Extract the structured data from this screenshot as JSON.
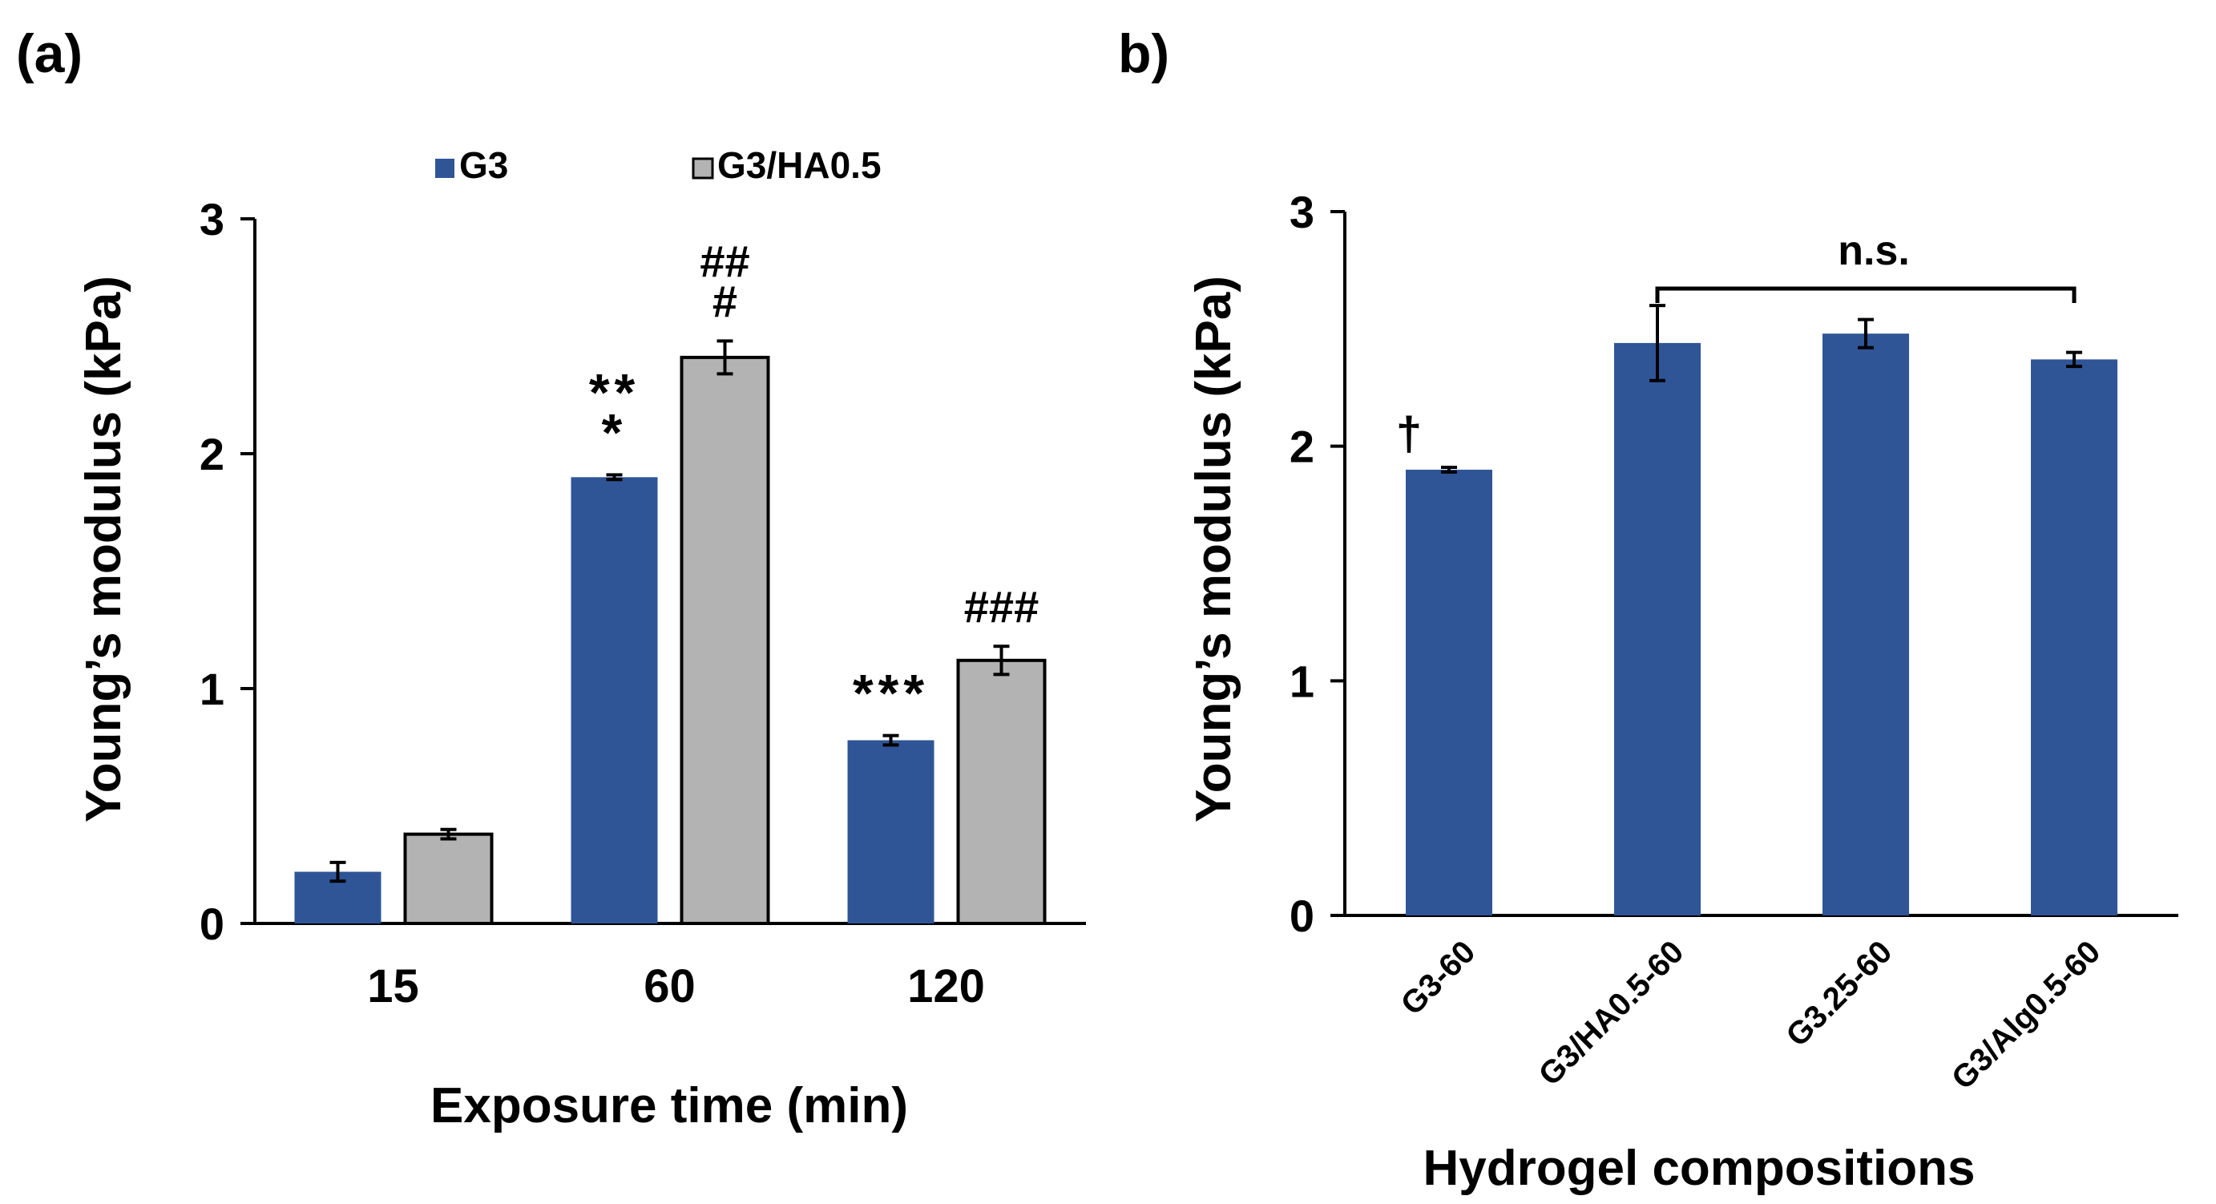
{
  "chart_data": [
    {
      "panel_label": "(a)",
      "type": "bar",
      "xlabel": "Exposure time (min)",
      "ylabel": "Young’s modulus (kPa)",
      "ylim": [
        0,
        3
      ],
      "yticks": [
        "0",
        "1",
        "2",
        "3"
      ],
      "categories": [
        "15",
        "60",
        "120"
      ],
      "legend_position": "top",
      "series": [
        {
          "name": "G3",
          "color": "#2f5597",
          "values": [
            0.22,
            1.9,
            0.78
          ],
          "errors": [
            0.04,
            0.01,
            0.02
          ],
          "annotations": [
            [],
            [
              "**",
              "*"
            ],
            [
              "***"
            ]
          ]
        },
        {
          "name": "G3/HA0.5",
          "color": "#b3b3b3",
          "values": [
            0.38,
            2.41,
            1.12
          ],
          "errors": [
            0.02,
            0.07,
            0.06
          ],
          "annotations": [
            [],
            [
              "##",
              "#"
            ],
            [
              "###"
            ]
          ]
        }
      ]
    },
    {
      "panel_label": "b)",
      "type": "bar",
      "xlabel": "Hydrogel  compositions",
      "ylabel": "Young’s modulus (kPa)",
      "ylim": [
        0,
        3
      ],
      "yticks": [
        "0",
        "1",
        "2",
        "3"
      ],
      "categories": [
        "G3-60",
        "G3/HA0.5-60",
        "G3.25-60",
        "G3/Alg0.5-60"
      ],
      "series": [
        {
          "color": "#2f5597",
          "values": [
            1.9,
            2.44,
            2.48,
            2.37
          ],
          "errors": [
            0.01,
            0.16,
            0.06,
            0.03
          ],
          "annotations": [
            [
              "†"
            ],
            [],
            [],
            []
          ]
        }
      ],
      "bracket": {
        "label": "n.s.",
        "from_index": 1,
        "to_index": 3
      }
    }
  ]
}
